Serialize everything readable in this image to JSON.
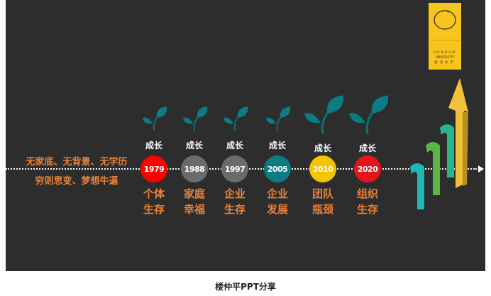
{
  "slide": {
    "intro_lines": [
      "无家底、无背景、无学历",
      "穷则思变、梦想牛逼"
    ],
    "growth_label": "成长",
    "milestones": [
      {
        "year": "1979",
        "label1": "个体",
        "label2": "生存",
        "color": "#ff0000"
      },
      {
        "year": "1988",
        "label1": "家庭",
        "label2": "幸福",
        "color": "#6b6b6b"
      },
      {
        "year": "1997",
        "label1": "企业",
        "label2": "生存",
        "color": "#6b6b6b"
      },
      {
        "year": "2005",
        "label1": "企业",
        "label2": "发展",
        "color": "#0d7b83"
      },
      {
        "year": "2010",
        "label1": "团队",
        "label2": "瓶颈",
        "color": "#f5c400"
      },
      {
        "year": "2020",
        "label1": "组织",
        "label2": "生存",
        "color": "#e8141c"
      }
    ],
    "logo": {
      "line1": "HUNDUN",
      "line2": "UNIVERSITY",
      "line3": "混沌大学"
    },
    "accent_color": "#e8823a"
  },
  "caption": "楼仲平PPT分享"
}
